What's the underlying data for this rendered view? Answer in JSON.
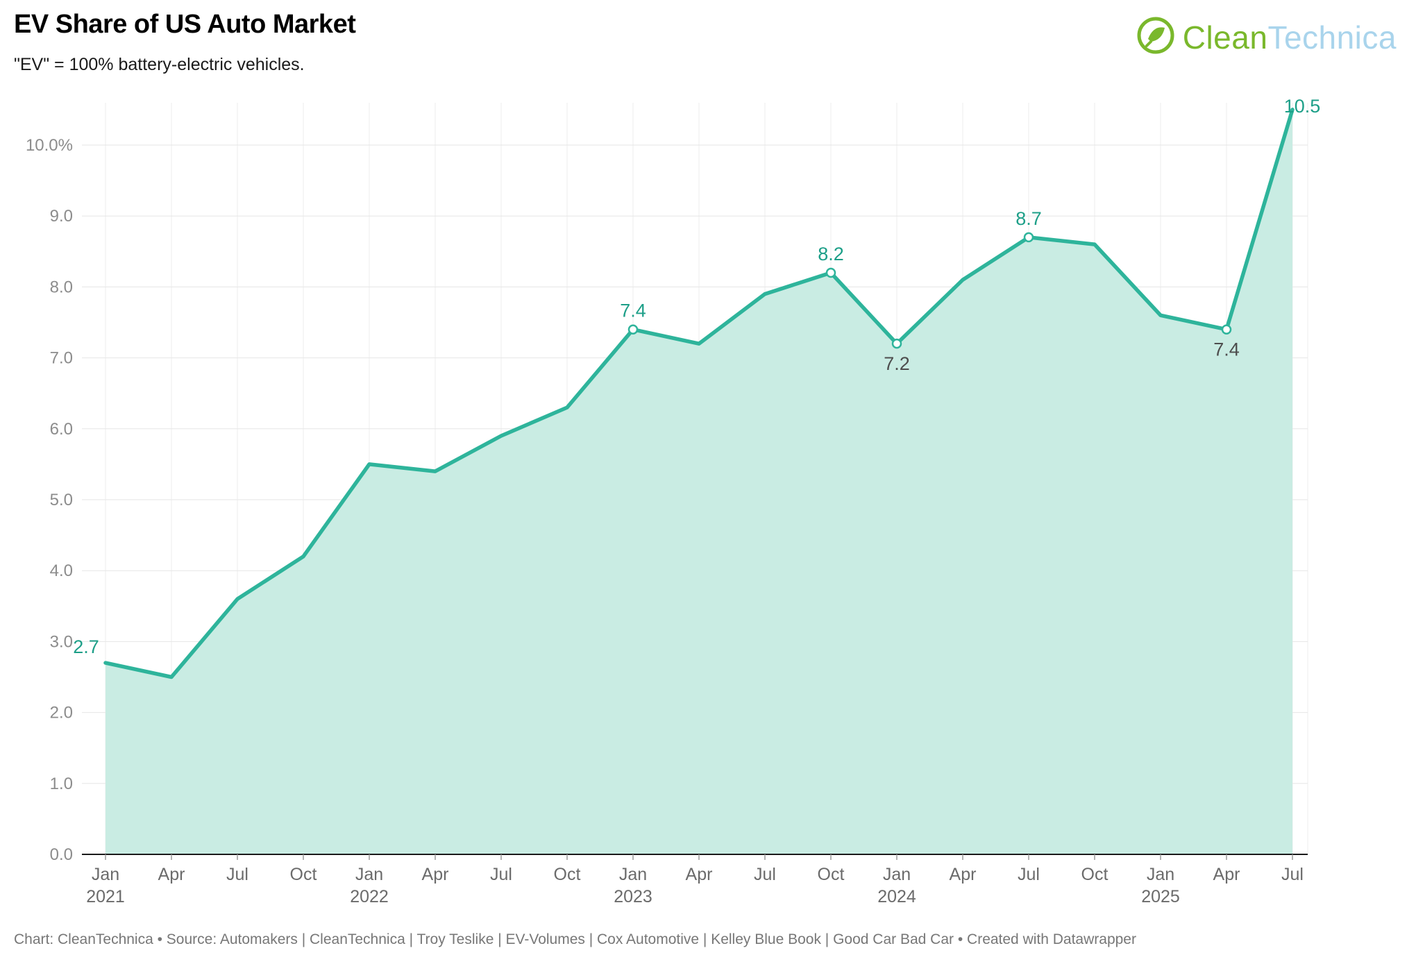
{
  "header": {
    "title": "EV Share of US Auto Market",
    "subtitle": "\"EV\" = 100% battery-electric vehicles."
  },
  "logo": {
    "text_primary": "Clean",
    "text_secondary": "Technica",
    "green": "#7ab82c",
    "blue": "#a9d4ec"
  },
  "chart_data": {
    "type": "area",
    "title": "EV Share of US Auto Market",
    "unit": "%",
    "ylim": [
      0,
      10.5
    ],
    "grid": true,
    "x": [
      {
        "month": "Jan",
        "year": "2021"
      },
      {
        "month": "Apr"
      },
      {
        "month": "Jul"
      },
      {
        "month": "Oct"
      },
      {
        "month": "Jan",
        "year": "2022"
      },
      {
        "month": "Apr"
      },
      {
        "month": "Jul"
      },
      {
        "month": "Oct"
      },
      {
        "month": "Jan",
        "year": "2023"
      },
      {
        "month": "Apr"
      },
      {
        "month": "Jul"
      },
      {
        "month": "Oct"
      },
      {
        "month": "Jan",
        "year": "2024"
      },
      {
        "month": "Apr"
      },
      {
        "month": "Jul"
      },
      {
        "month": "Oct"
      },
      {
        "month": "Jan",
        "year": "2025"
      },
      {
        "month": "Apr"
      },
      {
        "month": "Jul"
      }
    ],
    "values": [
      2.7,
      2.5,
      3.6,
      4.2,
      5.5,
      5.4,
      5.9,
      6.3,
      7.4,
      7.2,
      7.9,
      8.2,
      7.2,
      8.1,
      8.7,
      8.6,
      7.6,
      7.4,
      10.5
    ],
    "y_ticks": [
      {
        "value": 0,
        "label": "0.0"
      },
      {
        "value": 1,
        "label": "1.0"
      },
      {
        "value": 2,
        "label": "2.0"
      },
      {
        "value": 3,
        "label": "3.0"
      },
      {
        "value": 4,
        "label": "4.0"
      },
      {
        "value": 5,
        "label": "5.0"
      },
      {
        "value": 6,
        "label": "6.0"
      },
      {
        "value": 7,
        "label": "7.0"
      },
      {
        "value": 8,
        "label": "8.0"
      },
      {
        "value": 9,
        "label": "9.0"
      },
      {
        "value": 10,
        "label": "10.0%"
      }
    ],
    "point_labels": [
      {
        "index": 0,
        "text": "2.7",
        "placement": "above-left",
        "tone": "accent",
        "marker": false
      },
      {
        "index": 8,
        "text": "7.4",
        "placement": "above",
        "tone": "accent",
        "marker": true
      },
      {
        "index": 11,
        "text": "8.2",
        "placement": "above",
        "tone": "accent",
        "marker": true
      },
      {
        "index": 12,
        "text": "7.2",
        "placement": "below",
        "tone": "dark",
        "marker": true
      },
      {
        "index": 14,
        "text": "8.7",
        "placement": "above",
        "tone": "accent",
        "marker": true
      },
      {
        "index": 17,
        "text": "7.4",
        "placement": "below",
        "tone": "dark",
        "marker": true
      },
      {
        "index": 18,
        "text": "10.5",
        "placement": "right",
        "tone": "accent",
        "marker": false
      }
    ],
    "colors": {
      "line": "#2eb49b",
      "fill": "#c9ece3",
      "label_accent": "#1d9f88",
      "label_dark": "#4d4d4d",
      "grid": "#e6e6e6",
      "vgrid": "#ececec",
      "baseline": "#1a1a1a"
    }
  },
  "footer": {
    "text": "Chart: CleanTechnica • Source: Automakers | CleanTechnica | Troy Teslike | EV-Volumes | Cox Automotive | Kelley Blue Book | Good Car Bad Car • Created with Datawrapper"
  }
}
